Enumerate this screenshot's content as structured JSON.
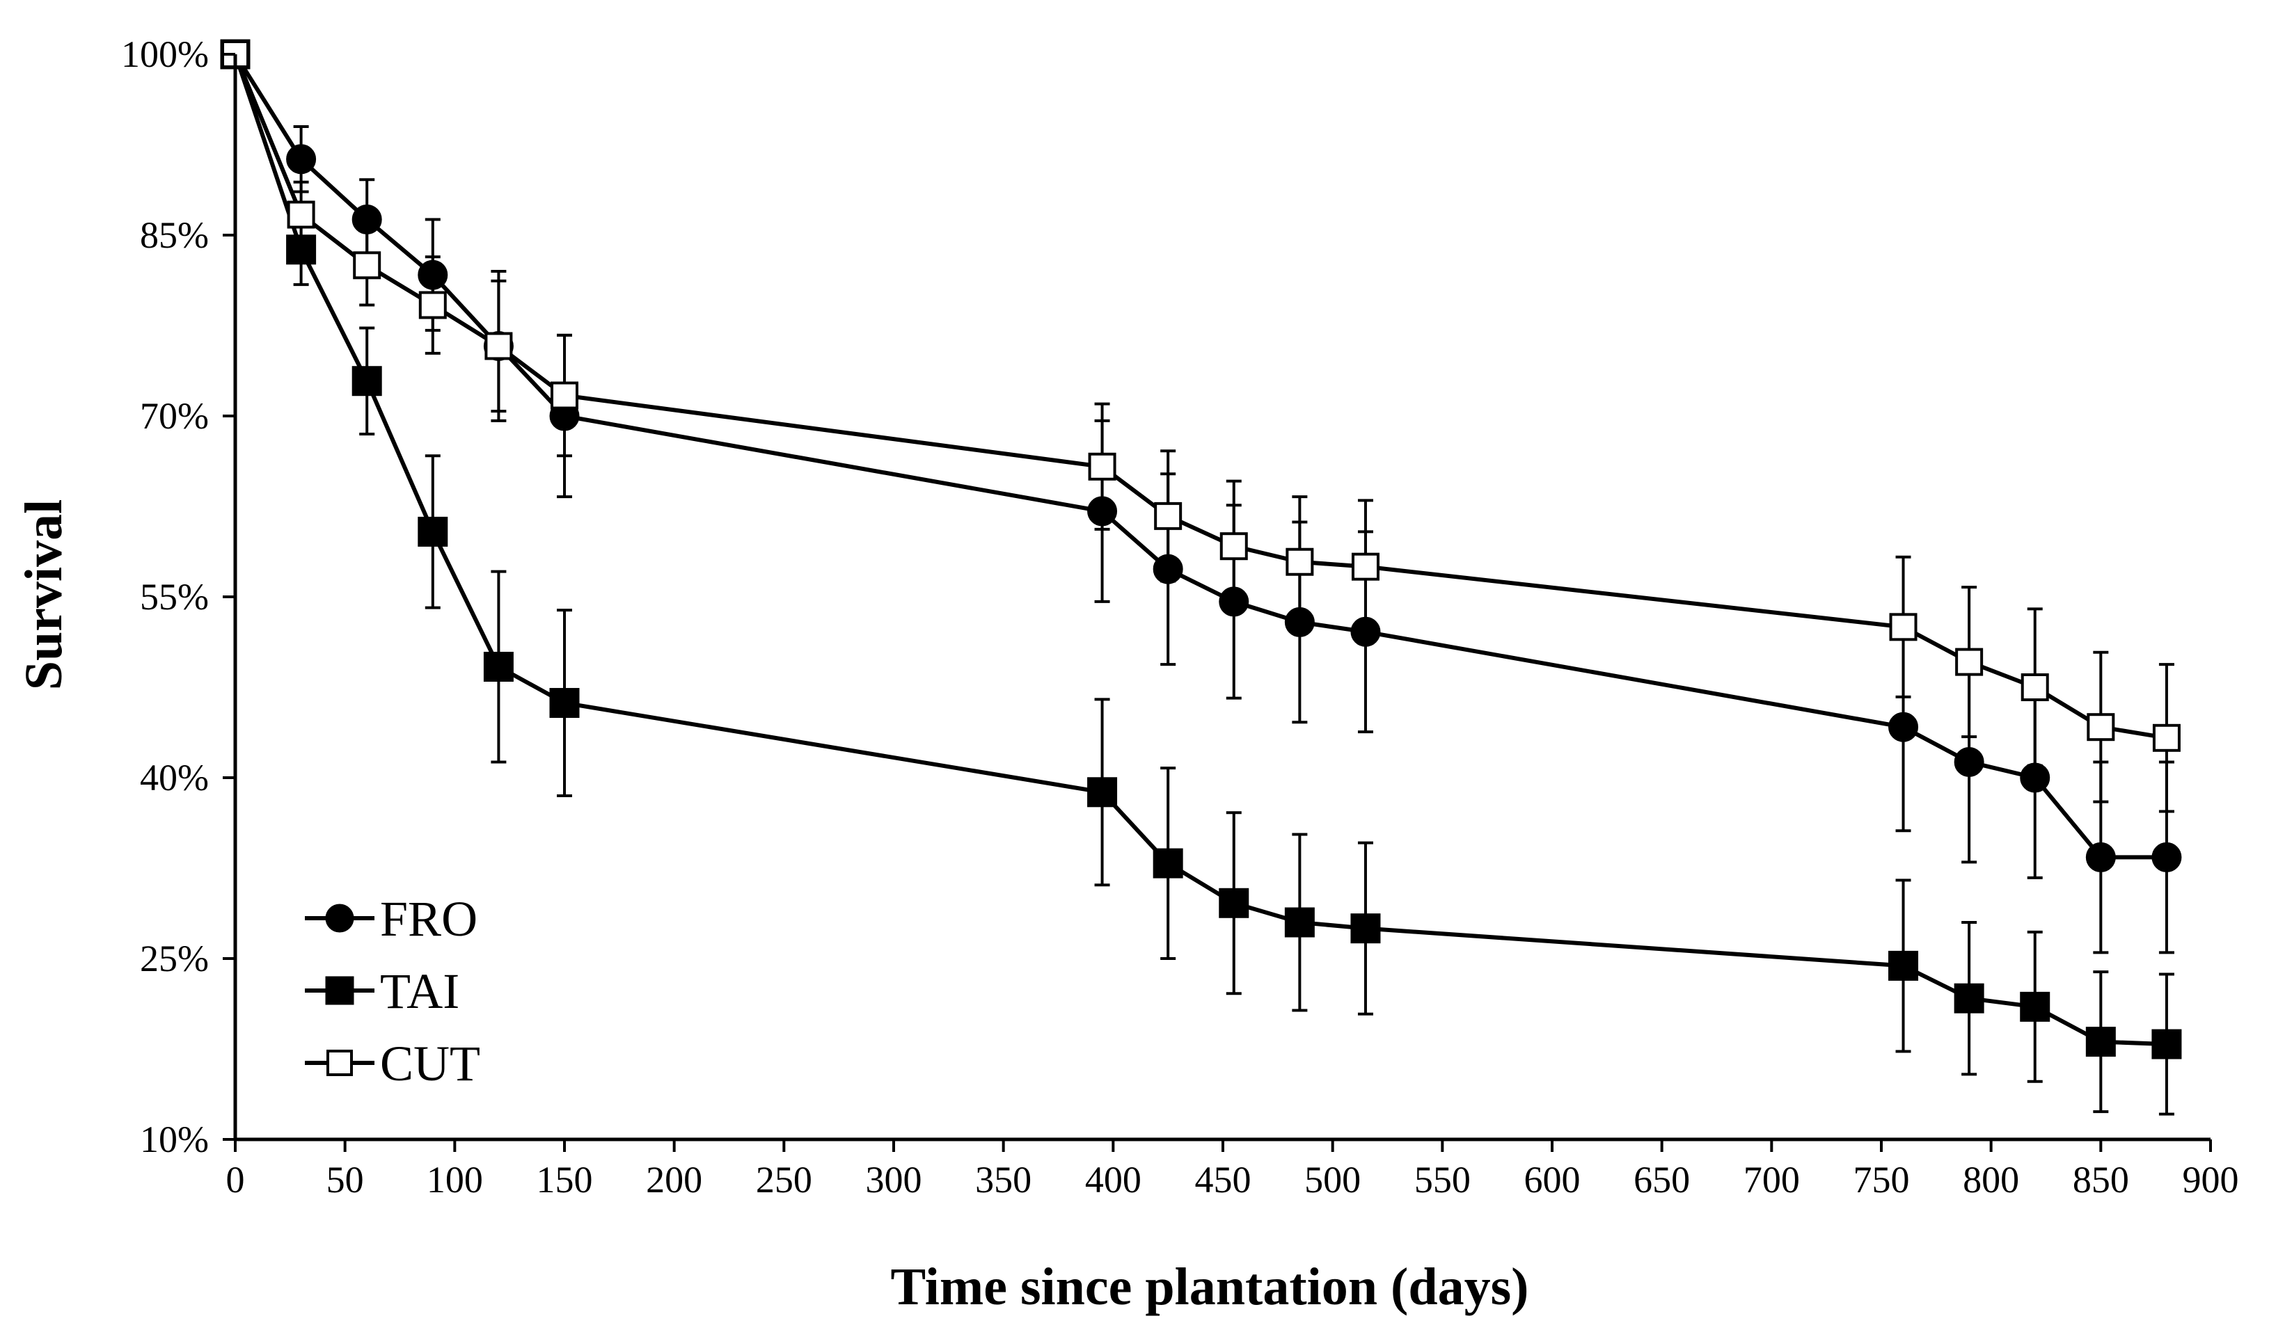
{
  "chart_data": {
    "type": "line",
    "title": "",
    "xlabel": "Time since plantation (days)",
    "ylabel": "Survival",
    "xlim": [
      0,
      900
    ],
    "ylim": [
      10,
      100
    ],
    "xticks": [
      0,
      50,
      100,
      150,
      200,
      250,
      300,
      350,
      400,
      450,
      500,
      550,
      600,
      650,
      700,
      750,
      800,
      850,
      900
    ],
    "xtick_labels": [
      "0",
      "50",
      "100",
      "150",
      "200",
      "250",
      "300",
      "350",
      "400",
      "450",
      "500",
      "550",
      "600",
      "650",
      "700",
      "750",
      "800",
      "850",
      "900"
    ],
    "yticks": [
      10,
      25,
      40,
      55,
      70,
      85,
      100
    ],
    "ytick_labels": [
      "10%",
      "25%",
      "40%",
      "55%",
      "70%",
      "85%",
      "100%"
    ],
    "grid": false,
    "legend_position": "bottom-left",
    "series": [
      {
        "name": "FRO",
        "marker": "filled-circle",
        "x": [
          0,
          30,
          60,
          90,
          120,
          150,
          395,
          425,
          455,
          485,
          515,
          760,
          790,
          820,
          850,
          880
        ],
        "values": [
          100,
          91.3,
          86.3,
          81.7,
          75.8,
          70.0,
          62.1,
          57.3,
          54.6,
          52.9,
          52.1,
          44.2,
          41.3,
          40.0,
          33.4,
          33.4
        ],
        "error": [
          0,
          2.7,
          3.3,
          4.6,
          6.2,
          6.7,
          7.5,
          7.9,
          8.0,
          8.3,
          8.3,
          8.6,
          8.3,
          8.3,
          7.9,
          7.9
        ]
      },
      {
        "name": "TAI",
        "marker": "filled-square",
        "x": [
          0,
          30,
          60,
          90,
          120,
          150,
          395,
          425,
          455,
          485,
          515,
          760,
          790,
          820,
          850,
          880
        ],
        "values": [
          100,
          83.8,
          72.9,
          60.4,
          49.2,
          46.2,
          38.8,
          32.9,
          29.6,
          28.0,
          27.5,
          24.4,
          21.7,
          21.0,
          18.1,
          17.9
        ],
        "error": [
          0,
          2.9,
          4.4,
          6.3,
          7.9,
          7.7,
          7.7,
          7.9,
          7.5,
          7.3,
          7.1,
          7.1,
          6.3,
          6.2,
          5.8,
          5.8
        ]
      },
      {
        "name": "CUT",
        "marker": "open-square",
        "x": [
          0,
          30,
          60,
          90,
          120,
          150,
          395,
          425,
          455,
          485,
          515,
          760,
          790,
          820,
          850,
          880
        ],
        "values": [
          100,
          86.7,
          82.5,
          79.2,
          75.8,
          71.7,
          65.8,
          61.7,
          59.2,
          57.9,
          57.5,
          52.5,
          49.6,
          47.5,
          44.2,
          43.3
        ],
        "error": [
          0,
          2.7,
          3.3,
          4.0,
          5.4,
          5.0,
          5.2,
          5.4,
          5.4,
          5.4,
          5.5,
          5.8,
          6.2,
          6.5,
          6.2,
          6.1
        ]
      }
    ]
  },
  "style": {
    "line_color": "#000000",
    "marker_fill": "#000000",
    "open_marker_fill": "#ffffff",
    "background": "#ffffff"
  }
}
